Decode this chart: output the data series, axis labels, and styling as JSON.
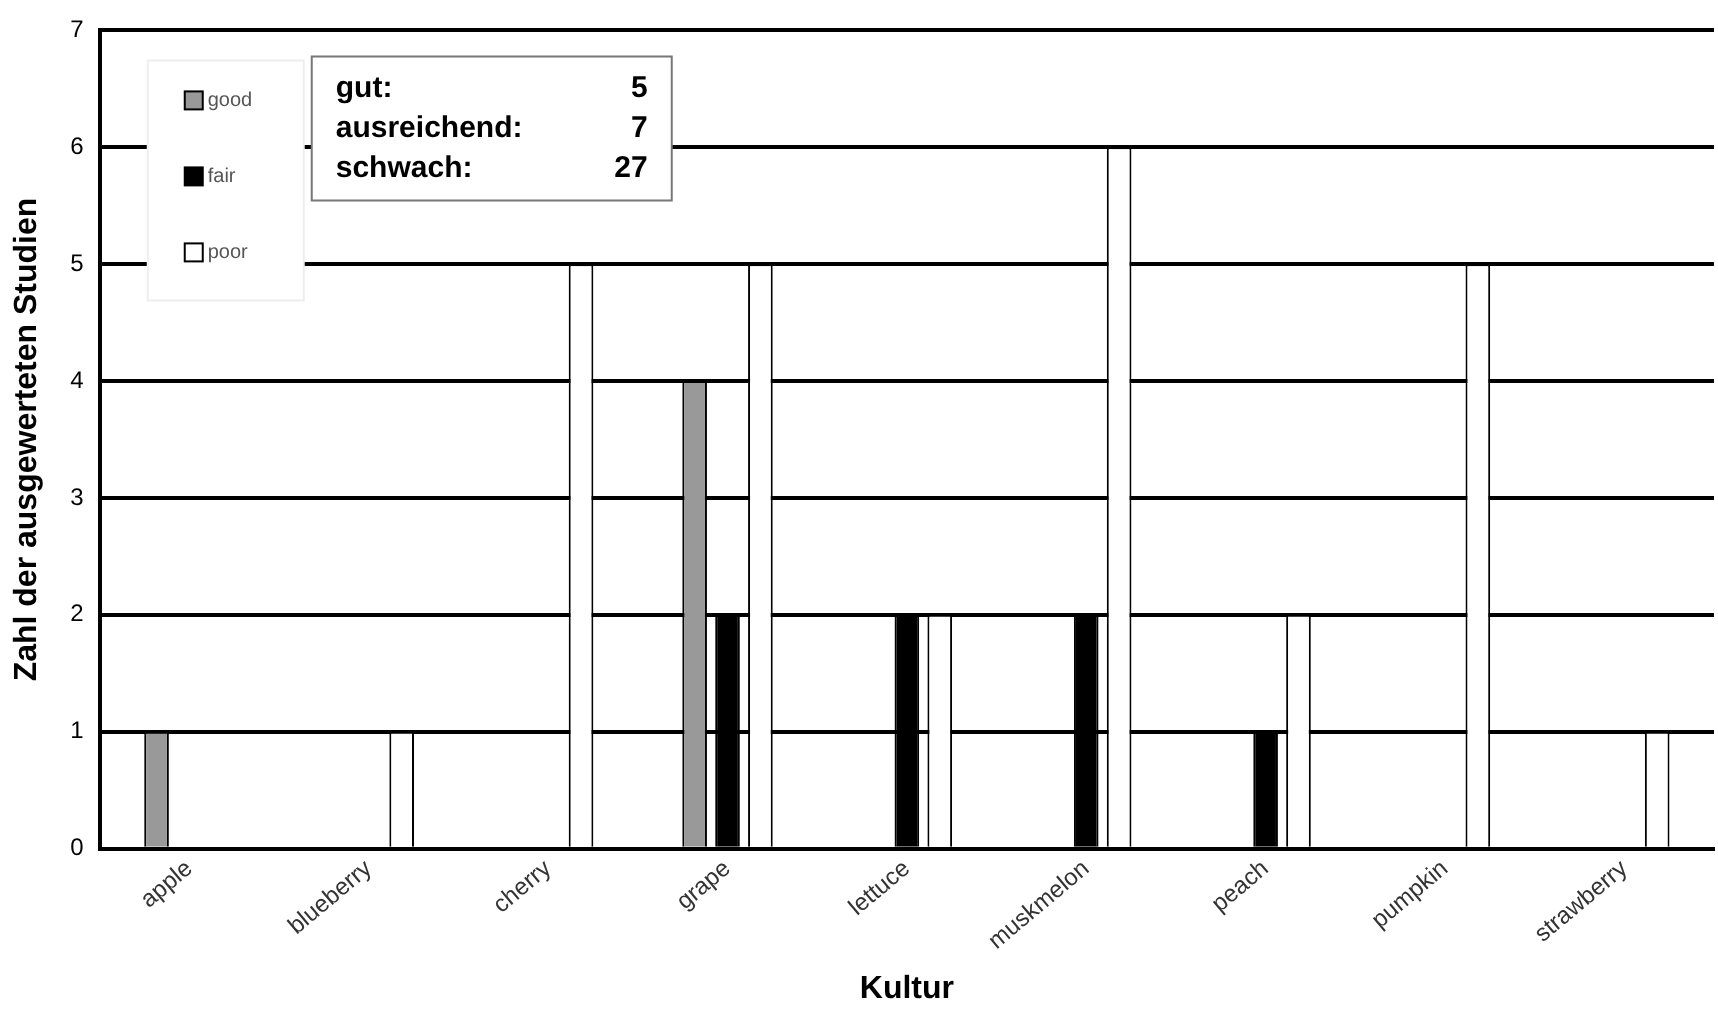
{
  "chart_data": {
    "type": "bar",
    "xlabel": "Kultur",
    "ylabel": "Zahl der ausgewerteten Studien",
    "categories": [
      "apple",
      "blueberry",
      "cherry",
      "grape",
      "lettuce",
      "muskmelon",
      "peach",
      "pumpkin",
      "strawberry"
    ],
    "series": [
      {
        "name": "good",
        "color": "#999999",
        "values": [
          1,
          0,
          0,
          4,
          0,
          0,
          0,
          0,
          0
        ]
      },
      {
        "name": "fair",
        "color": "#000000",
        "values": [
          0,
          0,
          0,
          2,
          2,
          2,
          1,
          0,
          0
        ]
      },
      {
        "name": "poor",
        "color": "#ffffff",
        "values": [
          0,
          1,
          5,
          5,
          2,
          6,
          2,
          5,
          1
        ]
      }
    ],
    "ylim": [
      0,
      7
    ],
    "yticks": [
      0,
      1,
      2,
      3,
      4,
      5,
      6,
      7
    ],
    "grid": "y",
    "legend": "top left",
    "annotations": [
      "gut: 5",
      "ausreichend: 7",
      "schwach: 27"
    ]
  }
}
